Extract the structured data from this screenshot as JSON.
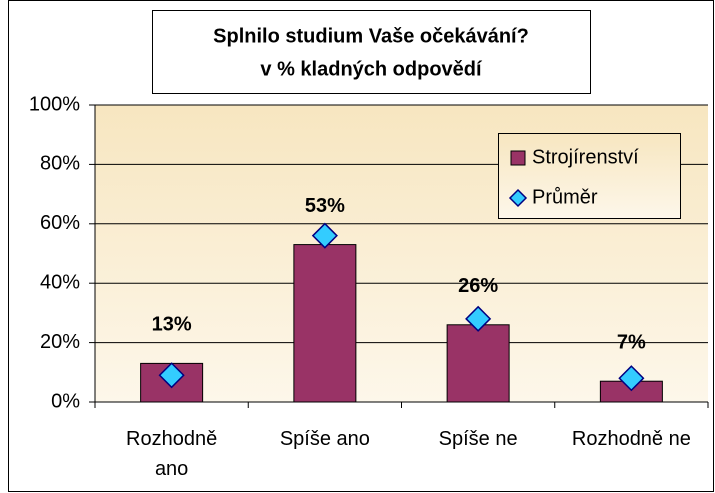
{
  "chart_data": {
    "type": "bar",
    "title": [
      "Splnilo studium Vaše očekávání?",
      "v % kladných odpovědí"
    ],
    "categories": [
      "Rozhodně ano",
      "Spíše ano",
      "Spíše ne",
      "Rozhodně ne"
    ],
    "series": [
      {
        "name": "Strojírenství",
        "type": "bar",
        "color": "#993366",
        "values": [
          13,
          53,
          26,
          7
        ],
        "value_labels": [
          "13%",
          "53%",
          "26%",
          "7%"
        ]
      },
      {
        "name": "Průměr",
        "type": "scatter",
        "color": "#33ccff",
        "values": [
          9,
          56,
          28,
          8
        ]
      }
    ],
    "ylim": [
      0,
      100
    ],
    "yticks": [
      {
        "value": 0,
        "label": "0%"
      },
      {
        "value": 20,
        "label": "20%"
      },
      {
        "value": 40,
        "label": "40%"
      },
      {
        "value": 60,
        "label": "60%"
      },
      {
        "value": 80,
        "label": "80%"
      },
      {
        "value": 100,
        "label": "100%"
      }
    ],
    "grid": true,
    "legend": "upper right"
  }
}
